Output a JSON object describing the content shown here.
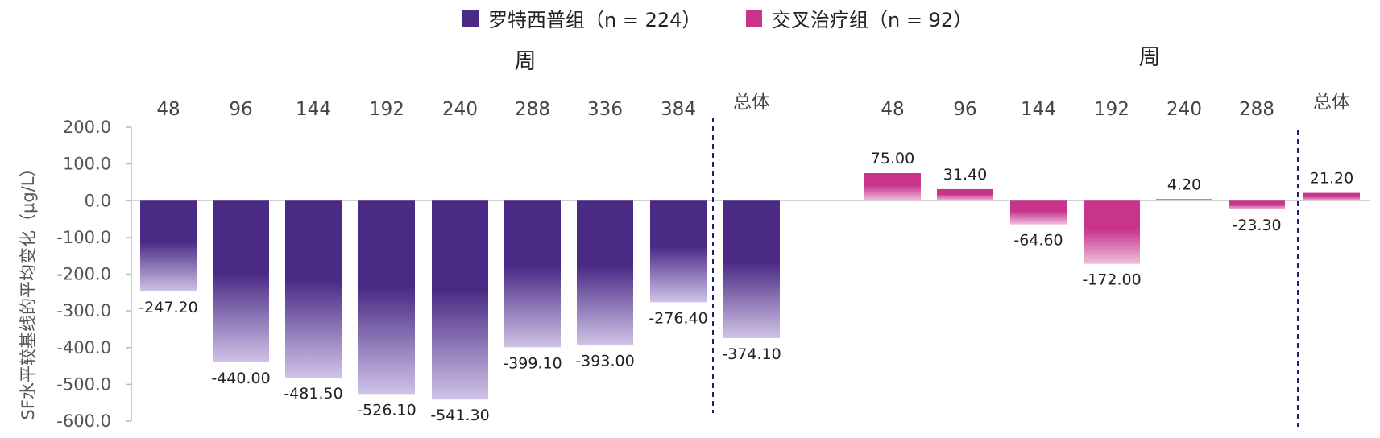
{
  "colors": {
    "rox": "#4b2a86",
    "rox_light": "#cfc3e6",
    "cross": "#c6358b",
    "cross_light": "#f1bedc",
    "divider": "#1f1f7a",
    "axis": "#bbbbbb"
  },
  "legend": [
    {
      "label": "罗特西普组（n = 224）",
      "color": "#4b2a86"
    },
    {
      "label": "交叉治疗组（n = 92）",
      "color": "#c6358b"
    }
  ],
  "axis": {
    "ylabel": "SF水平较基线的平均变化（μg/L）",
    "yticks": [
      "200.0",
      "100.0",
      "0.0",
      "-100.0",
      "-200.0",
      "-300.0",
      "-400.0",
      "-500.0",
      "-600.0"
    ]
  },
  "chart_data": [
    {
      "type": "bar",
      "series_name": "罗特西普组（n = 224）",
      "group_title": "周",
      "categories": [
        "48",
        "96",
        "144",
        "192",
        "240",
        "288",
        "336",
        "384",
        "总体"
      ],
      "values": [
        -247.2,
        -440.0,
        -481.5,
        -526.1,
        -541.3,
        -399.1,
        -393.0,
        -276.4,
        -374.1
      ],
      "value_labels": [
        "-247.20",
        "-440.00",
        "-481.50",
        "-526.10",
        "-541.30",
        "-399.10",
        "-393.00",
        "-276.40",
        "-374.10"
      ],
      "ylim": [
        -600,
        200
      ]
    },
    {
      "type": "bar",
      "series_name": "交叉治疗组（n = 92）",
      "group_title": "周",
      "categories": [
        "48",
        "96",
        "144",
        "192",
        "240",
        "288",
        "总体"
      ],
      "values": [
        75.0,
        31.4,
        -64.6,
        -172.0,
        4.2,
        -23.3,
        21.2
      ],
      "value_labels": [
        "75.00",
        "31.40",
        "-64.60",
        "-172.00",
        "4.20",
        "-23.30",
        "21.20"
      ],
      "ylim": [
        -600,
        200
      ]
    }
  ]
}
